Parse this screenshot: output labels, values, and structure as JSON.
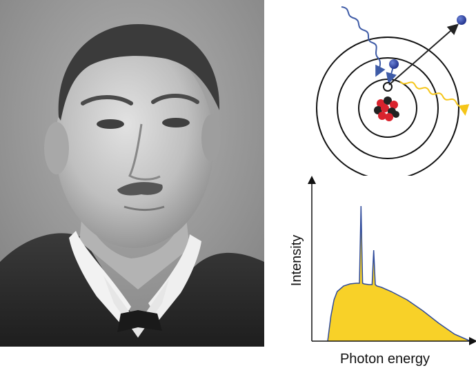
{
  "portrait": {
    "kind": "black-and-white photograph of a man in a suit with a wing collar",
    "tones": {
      "background": "#9a9a9a",
      "suit": "#2a2a2a",
      "skin": "#c8c8c8",
      "hair": "#3a3a3a"
    }
  },
  "atom_diagram": {
    "colors": {
      "incoming_photon": "#3d5aa6",
      "emitted_photon": "#f5c518",
      "electron": "#1f2f8a",
      "nucleus_red": "#d9232e",
      "nucleus_dark": "#222222"
    },
    "icons": [
      "incoming-photon-wave-icon",
      "ejected-electron-icon",
      "emitted-xray-wave-icon",
      "nucleus-icon",
      "vacancy-icon"
    ]
  },
  "chart_data": {
    "type": "area",
    "title": "",
    "xlabel": "Photon energy",
    "ylabel": "Intensity",
    "xlim": [
      0,
      100
    ],
    "ylim": [
      0,
      100
    ],
    "grid": false,
    "fill_color": "#f8d128",
    "line_color": "#2e4a9a",
    "series": [
      {
        "x": [
          10,
          12,
          14,
          16,
          20,
          24,
          28,
          30,
          31,
          32,
          33,
          36,
          38,
          39,
          40,
          41,
          44,
          50,
          60,
          70,
          80,
          90,
          100
        ],
        "values": [
          0,
          18,
          30,
          36,
          40,
          41.5,
          42,
          42,
          98,
          42,
          41.5,
          41,
          41,
          66,
          41,
          40,
          39,
          36,
          30,
          22,
          13,
          5,
          0
        ]
      }
    ]
  }
}
